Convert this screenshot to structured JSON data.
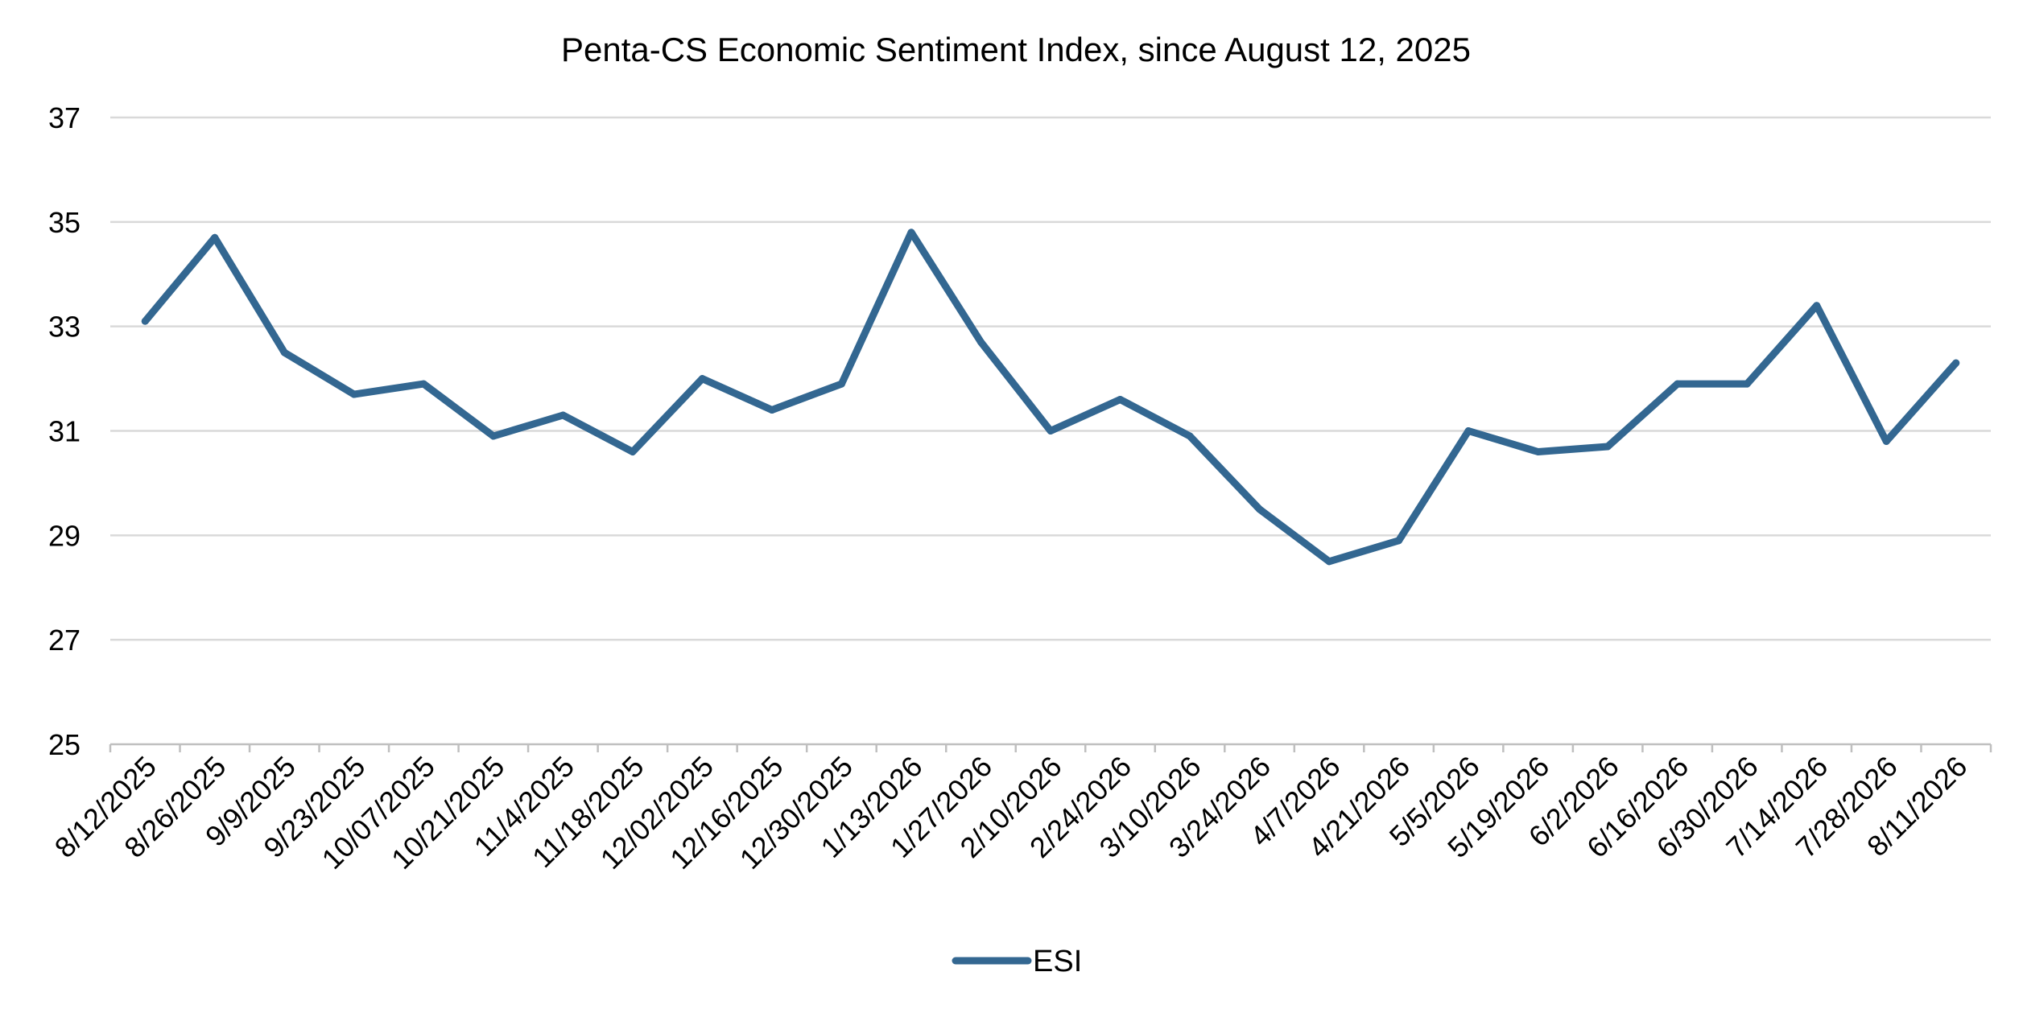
{
  "chart_data": {
    "type": "line",
    "title": "Penta-CS Economic Sentiment Index, since August 12, 2025",
    "xlabel": "",
    "ylabel": "",
    "ylim": [
      25,
      37
    ],
    "yticks": [
      "25",
      "27",
      "29",
      "31",
      "33",
      "35",
      "37"
    ],
    "grid": true,
    "legend_position": "bottom",
    "categories": [
      "8/12/2025",
      "8/26/2025",
      "9/9/2025",
      "9/23/2025",
      "10/07/2025",
      "10/21/2025",
      "11/4/2025",
      "11/18/2025",
      "12/02/2025",
      "12/16/2025",
      "12/30/2025",
      "1/13/2026",
      "1/27/2026",
      "2/10/2026",
      "2/24/2026",
      "3/10/2026",
      "3/24/2026",
      "4/7/2026",
      "4/21/2026",
      "5/5/2026",
      "5/19/2026",
      "6/2/2026",
      "6/16/2026",
      "6/30/2026",
      "7/14/2026",
      "7/28/2026",
      "8/11/2026"
    ],
    "series": [
      {
        "name": "ESI",
        "color": "#336791",
        "values": [
          33.1,
          34.7,
          32.5,
          31.7,
          31.9,
          30.9,
          31.3,
          30.6,
          32.0,
          31.4,
          31.9,
          34.8,
          32.7,
          31.0,
          31.6,
          30.9,
          29.5,
          28.5,
          28.9,
          31.0,
          30.6,
          30.7,
          31.9,
          31.9,
          33.4,
          30.8,
          32.3
        ]
      }
    ]
  }
}
